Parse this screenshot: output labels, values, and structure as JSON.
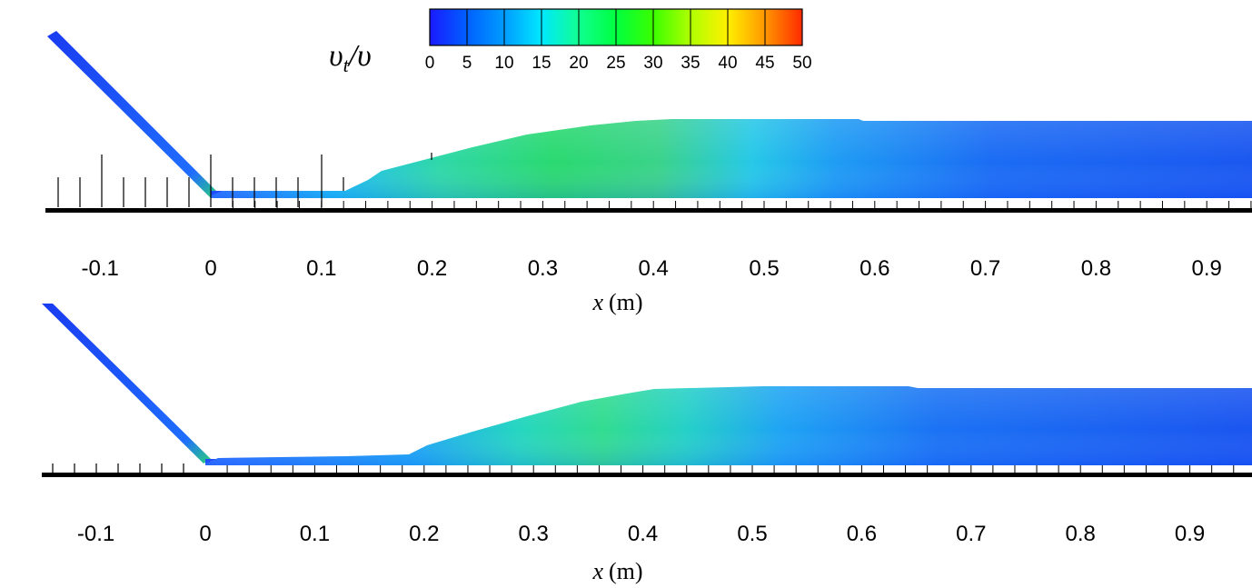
{
  "colorbar": {
    "title": "υt/υ",
    "title_main": "υ",
    "title_sub": "t",
    "title_rest": "/υ",
    "min": 0,
    "max": 50,
    "tick_labels": [
      "0",
      "5",
      "10",
      "15",
      "20",
      "25",
      "30",
      "35",
      "40",
      "45",
      "50"
    ],
    "colors": [
      "#1a1aff",
      "#0060ff",
      "#009cff",
      "#00e8ff",
      "#10ff90",
      "#00ff40",
      "#3aff00",
      "#b0ff00",
      "#fff000",
      "#ff9600",
      "#ff2a00"
    ]
  },
  "chart_data": [
    {
      "type": "heatmap",
      "name": "top-panel",
      "variable": "υt/υ",
      "xlabel": "x (m)",
      "x_tick_labels": [
        "-0.1",
        "0",
        "0.1",
        "0.2",
        "0.3",
        "0.4",
        "0.5",
        "0.6",
        "0.7",
        "0.8",
        "0.9"
      ],
      "x_ticks": [
        -0.1,
        0,
        0.1,
        0.2,
        0.3,
        0.4,
        0.5,
        0.6,
        0.7,
        0.8,
        0.9
      ],
      "xlim": [
        -0.145,
        0.95
      ],
      "features": [
        {
          "region": "current head",
          "x_range": [
            0.15,
            0.45
          ],
          "peak_value": 22,
          "peak_x": 0.3
        },
        {
          "region": "body",
          "x_range": [
            0.45,
            0.95
          ],
          "value_range": [
            5,
            10
          ]
        },
        {
          "region": "slope",
          "x_range": [
            -0.15,
            0.0
          ],
          "value_range": [
            3,
            8
          ]
        }
      ]
    },
    {
      "type": "heatmap",
      "name": "bottom-panel",
      "variable": "υt/υ",
      "xlabel": "x (m)",
      "x_tick_labels": [
        "-0.1",
        "0",
        "0.1",
        "0.2",
        "0.3",
        "0.4",
        "0.5",
        "0.6",
        "0.7",
        "0.8",
        "0.9"
      ],
      "x_ticks": [
        -0.1,
        0,
        0.1,
        0.2,
        0.3,
        0.4,
        0.5,
        0.6,
        0.7,
        0.8,
        0.9
      ],
      "xlim": [
        -0.145,
        0.95
      ],
      "features": [
        {
          "region": "current head",
          "x_range": [
            0.2,
            0.5
          ],
          "peak_value": 17,
          "peak_x": 0.35
        },
        {
          "region": "body",
          "x_range": [
            0.5,
            0.95
          ],
          "value_range": [
            4,
            9
          ]
        },
        {
          "region": "slope",
          "x_range": [
            -0.15,
            0.0
          ],
          "value_range": [
            3,
            8
          ]
        }
      ]
    }
  ]
}
